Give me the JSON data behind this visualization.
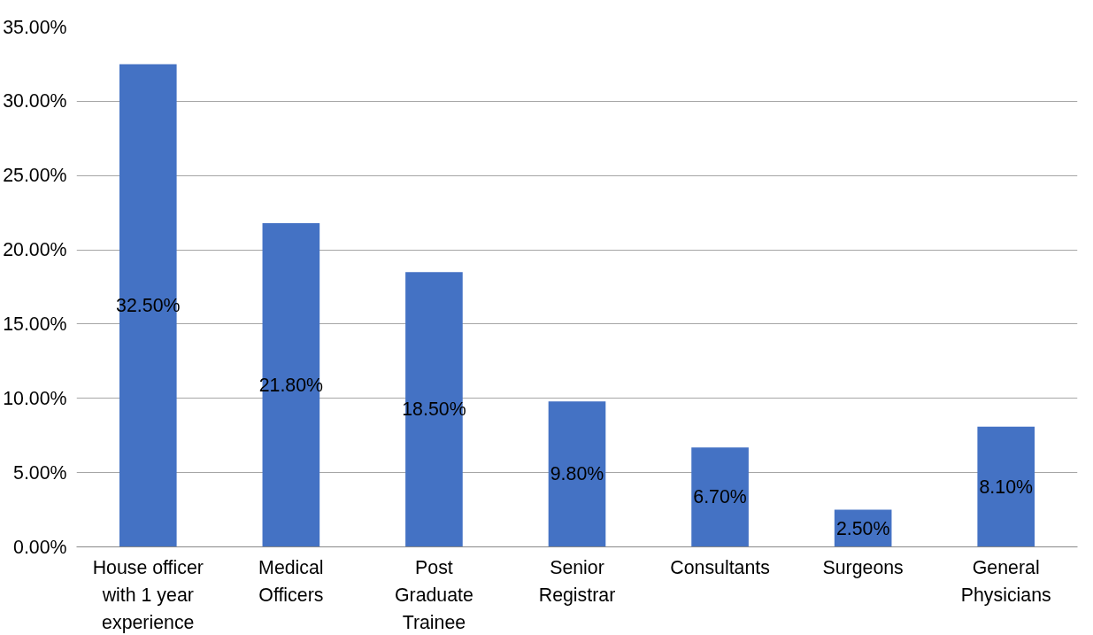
{
  "chart_data": {
    "type": "bar",
    "categories": [
      "House officer\nwith 1 year\nexperience",
      "Medical\nOfficers",
      "Post\nGraduate\nTrainee",
      "Senior\nRegistrar",
      "Consultants",
      "Surgeons",
      "General\nPhysicians"
    ],
    "values": [
      32.5,
      21.8,
      18.5,
      9.8,
      6.7,
      2.5,
      8.1
    ],
    "color": "#4472c4",
    "value_labels": [
      "32.50%",
      "21.80%",
      "18.50%",
      "9.80%",
      "6.70%",
      "2.50%",
      "8.10%"
    ],
    "ylim": [
      0,
      35
    ],
    "yticks": [
      {
        "value": 0,
        "label": "0.00%"
      },
      {
        "value": 5,
        "label": "5.00%"
      },
      {
        "value": 10,
        "label": "10.00%"
      },
      {
        "value": 15,
        "label": "15.00%"
      },
      {
        "value": 20,
        "label": "20.00%"
      },
      {
        "value": 25,
        "label": "25.00%"
      },
      {
        "value": 30,
        "label": "30.00%"
      },
      {
        "value": 35,
        "label": "35.00%"
      }
    ],
    "grid": "y"
  }
}
